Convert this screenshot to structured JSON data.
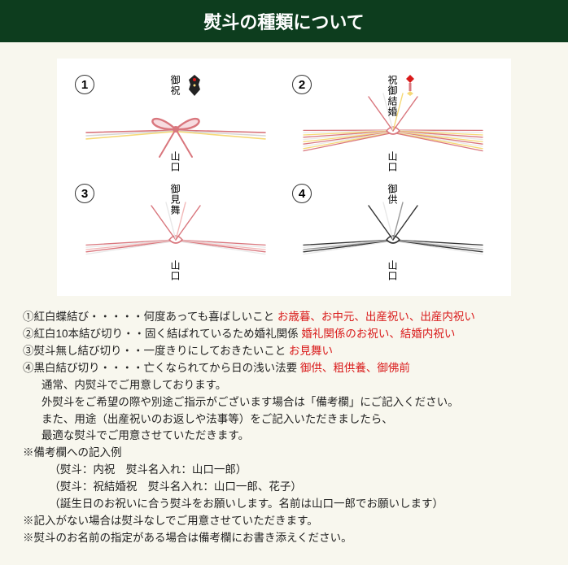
{
  "header": {
    "title": "熨斗の種類について"
  },
  "diagram": {
    "cells": [
      {
        "num": "1",
        "top_label": "御祝",
        "bottom_label": "山口",
        "type": "bow",
        "strands": [
          "#d9767d",
          "#d6d6d6",
          "#f6d976"
        ],
        "ornament": "motif1"
      },
      {
        "num": "2",
        "top_label": "祝御結婚",
        "bottom_label": "山口",
        "type": "knot",
        "strands": [
          "#d9767d",
          "#e8e8e8",
          "#f6d976",
          "#d9767d",
          "#e8e8e8",
          "#f6d976",
          "#d9767d",
          "#e8e8e8",
          "#f6d976",
          "#d9767d"
        ],
        "ornament": "motif2"
      },
      {
        "num": "3",
        "top_label": "御見舞",
        "bottom_label": "山口",
        "type": "knot",
        "strands": [
          "#d9767d",
          "#e8e8e8",
          "#f2b8b8",
          "#d9767d",
          "#e8e8e8"
        ],
        "ornament": ""
      },
      {
        "num": "4",
        "top_label": "御供",
        "bottom_label": "山口",
        "type": "knot",
        "strands": [
          "#333",
          "#e8e8e8",
          "#999",
          "#333",
          "#e8e8e8"
        ],
        "ornament": ""
      }
    ]
  },
  "desc": {
    "d1_pre": "①紅白蝶結び・・・・・何度あっても喜ばしいこと ",
    "d1_red": "お歳暮、お中元、出産祝い、出産内祝い",
    "d2_pre": "②紅白10本結び切り・・固く結ばれているため婚礼関係 ",
    "d2_red": "婚礼関係のお祝い、結婚内祝い",
    "d3_pre": "③熨斗無し結び切り・・一度きりにしておきたいこと ",
    "d3_red": "お見舞い",
    "d4_pre": "④黒白結び切り・・・・亡くなられてから日の浅い法要 ",
    "d4_red": "御供、粗供養、御佛前",
    "l5": "通常、内熨斗でご用意しております。",
    "l6": "外熨斗をご希望の際や別途ご指示がございます場合は「備考欄」にご記入ください。",
    "l7": "また、用途（出産祝いのお返しや法事等）をご記入いただきましたら、",
    "l8": "最適な熨斗でご用意させていただきます。",
    "l9": "※備考欄への記入例",
    "l10": "（熨斗：内祝　熨斗名入れ：山口一郎）",
    "l11": "（熨斗：祝結婚祝　熨斗名入れ：山口一郎、花子）",
    "l12": "（誕生日のお祝いに合う熨斗をお願いします。名前は山口一郎でお願いします）",
    "l13": "※記入がない場合は熨斗なしでご用意させていただきます。",
    "l14": "※熨斗のお名前の指定がある場合は備考欄にお書き添えください。"
  }
}
